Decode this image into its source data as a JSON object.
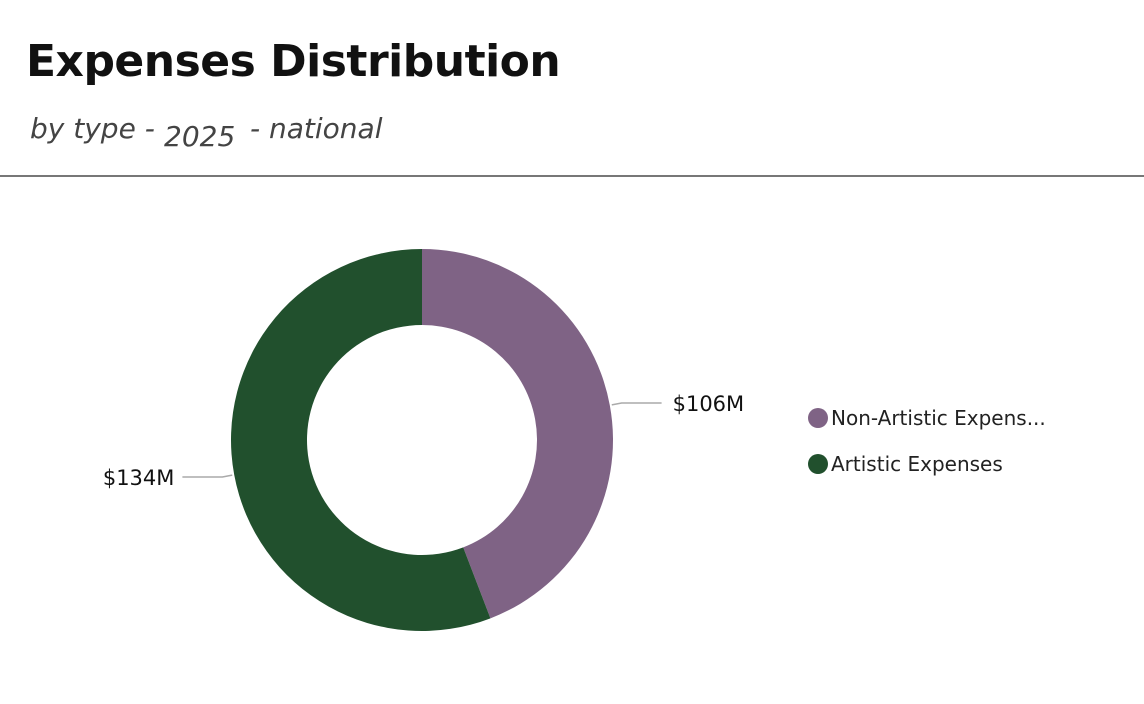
{
  "header": {
    "title": "Expenses Distribution",
    "subtitle_type": "by type -",
    "subtitle_year": "2025",
    "subtitle_scope": "- national"
  },
  "chart_data": {
    "type": "pie",
    "donut": true,
    "title": "Expenses Distribution",
    "categories": [
      "Non-Artistic Expenses",
      "Artistic Expenses"
    ],
    "values": [
      106,
      134
    ],
    "unit": "$M",
    "data_labels": [
      "$106M",
      "$134M"
    ],
    "colors": [
      "#7f6385",
      "#21502d"
    ],
    "legend": {
      "position": "right",
      "labels": [
        "Non-Artistic Expens...",
        "Artistic Expenses"
      ]
    }
  }
}
